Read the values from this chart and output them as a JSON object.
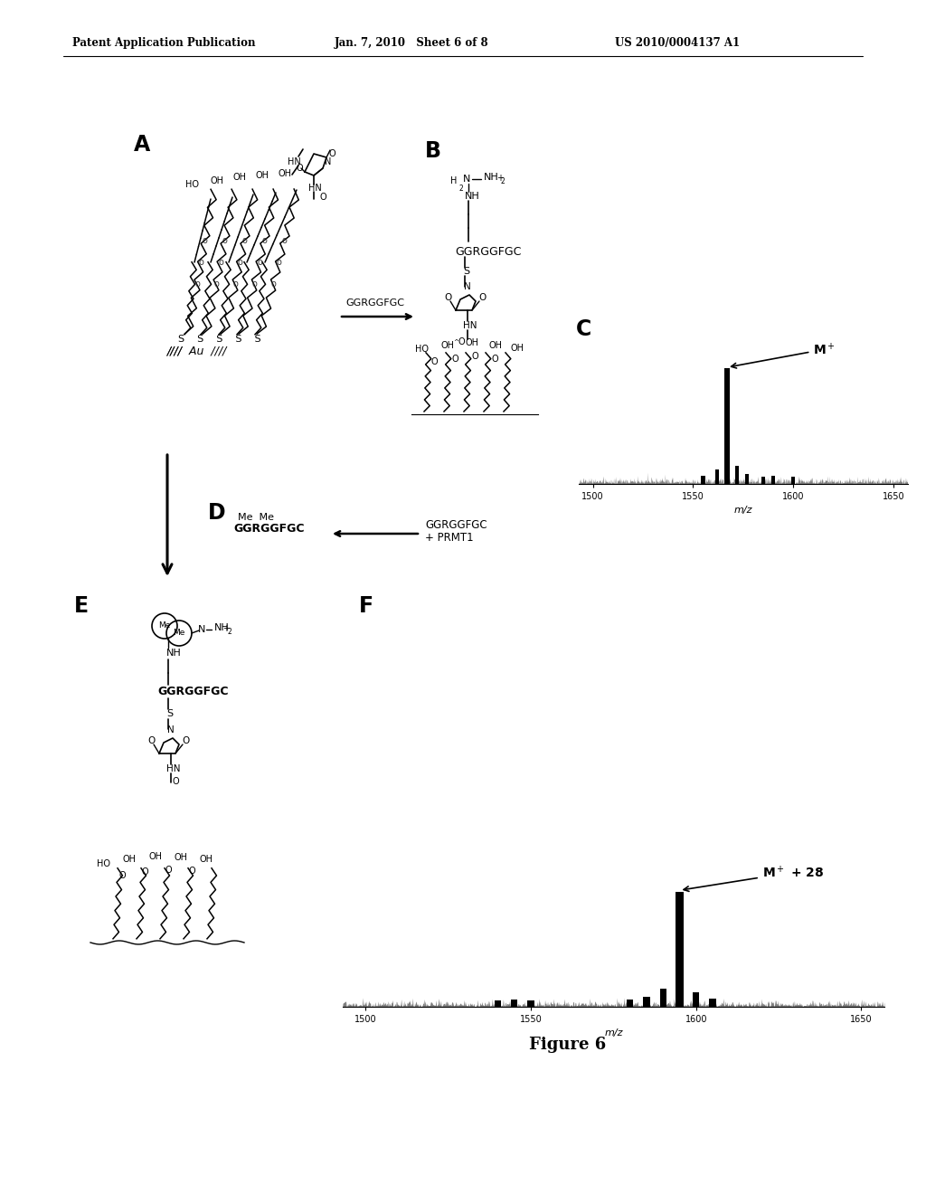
{
  "background_color": "#ffffff",
  "header_left": "Patent Application Publication",
  "header_center": "Jan. 7, 2010   Sheet 6 of 8",
  "header_right": "US 2010/0004137 A1",
  "figure_caption": "Figure 6",
  "text_color": "#000000"
}
